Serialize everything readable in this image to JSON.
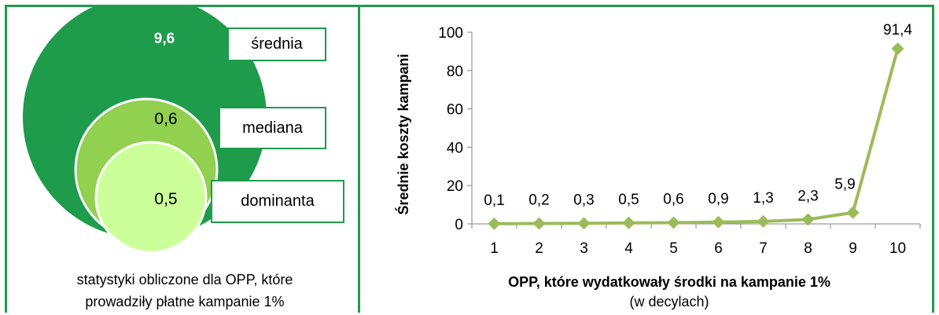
{
  "left": {
    "circles": [
      {
        "value": "9,6",
        "label": "średnia",
        "color": "#1e9c4c",
        "value_color": "#ffffff"
      },
      {
        "value": "0,6",
        "label": "mediana",
        "color": "#92d050",
        "value_color": "#000000"
      },
      {
        "value": "0,5",
        "label": "dominanta",
        "color": "#ccff99",
        "value_color": "#000000"
      }
    ],
    "caption_line1": "statystyki obliczone dla OPP, które",
    "caption_line2": "prowadziły płatne kampanie 1%"
  },
  "chart_data": {
    "type": "line",
    "categories": [
      "1",
      "2",
      "3",
      "4",
      "5",
      "6",
      "7",
      "8",
      "9",
      "10"
    ],
    "values": [
      0.1,
      0.2,
      0.3,
      0.5,
      0.6,
      0.9,
      1.3,
      2.3,
      5.9,
      91.4
    ],
    "data_labels": [
      "0,1",
      "0,2",
      "0,3",
      "0,5",
      "0,6",
      "0,9",
      "1,3",
      "2,3",
      "5,9",
      "91,4"
    ],
    "ylabel": "Średnie koszty kampani",
    "xlabel": "OPP, które wydatkowały środki na kampanie 1%",
    "xlabel_sub": "(w decylach)",
    "ylim": [
      0,
      100
    ],
    "yticks": [
      0,
      20,
      40,
      60,
      80,
      100
    ],
    "grid": false,
    "line_color": "#9bbb59"
  }
}
